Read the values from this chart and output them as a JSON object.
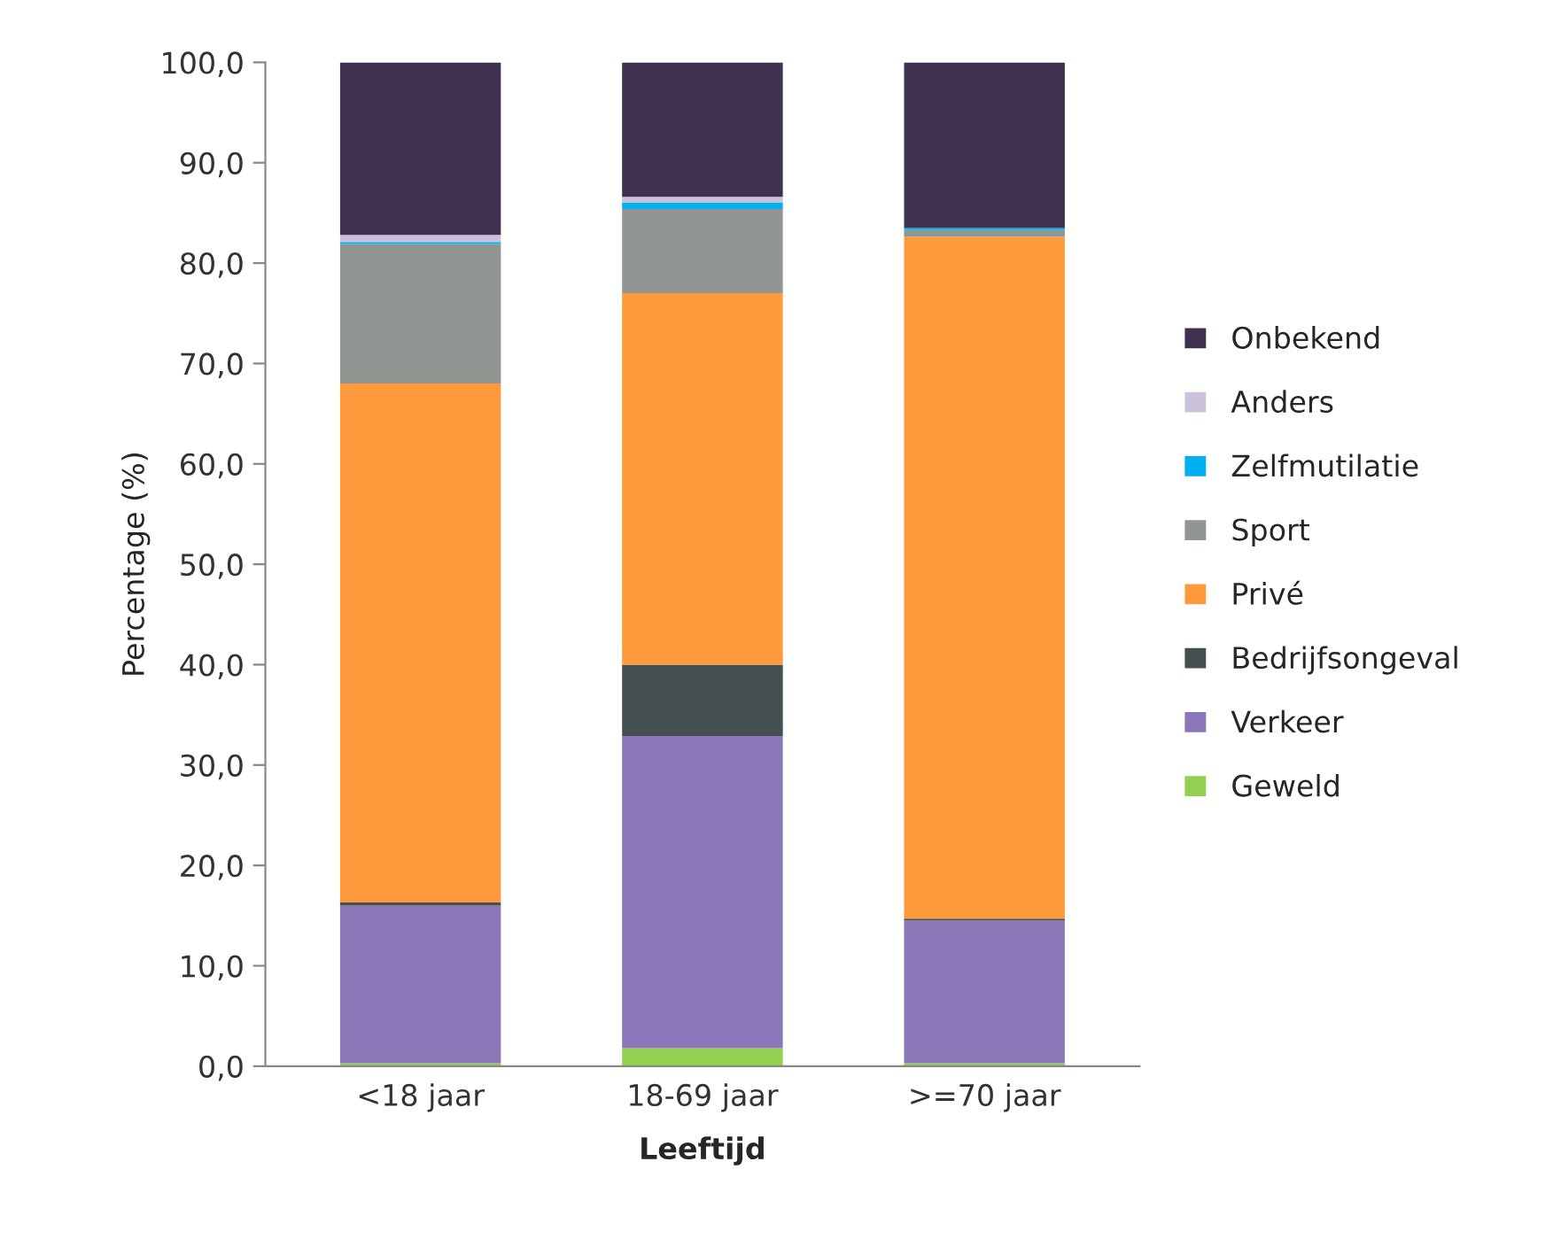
{
  "chart_data": {
    "type": "bar",
    "stacked": true,
    "xlabel": "Leeftijd",
    "ylabel": "Percentage (%)",
    "categories": [
      "<18 jaar",
      "18-69 jaar",
      ">=70 jaar"
    ],
    "series": [
      {
        "name": "Geweld",
        "color": "#92d050",
        "values": [
          0.3,
          1.8,
          0.3
        ]
      },
      {
        "name": "Verkeer",
        "color": "#8b77b8",
        "values": [
          15.7,
          31.1,
          14.2
        ]
      },
      {
        "name": "Bedrijfsongeval",
        "color": "#444f51",
        "values": [
          0.3,
          7.1,
          0.2
        ]
      },
      {
        "name": "Privé",
        "color": "#ff9a3c",
        "values": [
          51.7,
          37.0,
          67.9
        ]
      },
      {
        "name": "Sport",
        "color": "#929692",
        "values": [
          13.9,
          8.4,
          0.7
        ]
      },
      {
        "name": "Zelfmutilatie",
        "color": "#00b0f0",
        "values": [
          0.2,
          0.6,
          0.2
        ]
      },
      {
        "name": "Anders",
        "color": "#ccc1da",
        "values": [
          0.7,
          0.6,
          0.0
        ]
      },
      {
        "name": "Onbekend",
        "color": "#403151",
        "values": [
          17.2,
          13.4,
          16.5
        ]
      }
    ],
    "ylim": [
      0,
      100
    ],
    "yticks": [
      {
        "value": 0,
        "label": "0,0"
      },
      {
        "value": 10,
        "label": "10,0"
      },
      {
        "value": 20,
        "label": "20,0"
      },
      {
        "value": 30,
        "label": "30,0"
      },
      {
        "value": 40,
        "label": "40,0"
      },
      {
        "value": 50,
        "label": "50,0"
      },
      {
        "value": 60,
        "label": "60,0"
      },
      {
        "value": 70,
        "label": "70,0"
      },
      {
        "value": 80,
        "label": "80,0"
      },
      {
        "value": 90,
        "label": "90,0"
      },
      {
        "value": 100,
        "label": "100,0"
      }
    ],
    "grid": false,
    "legend": "right"
  }
}
